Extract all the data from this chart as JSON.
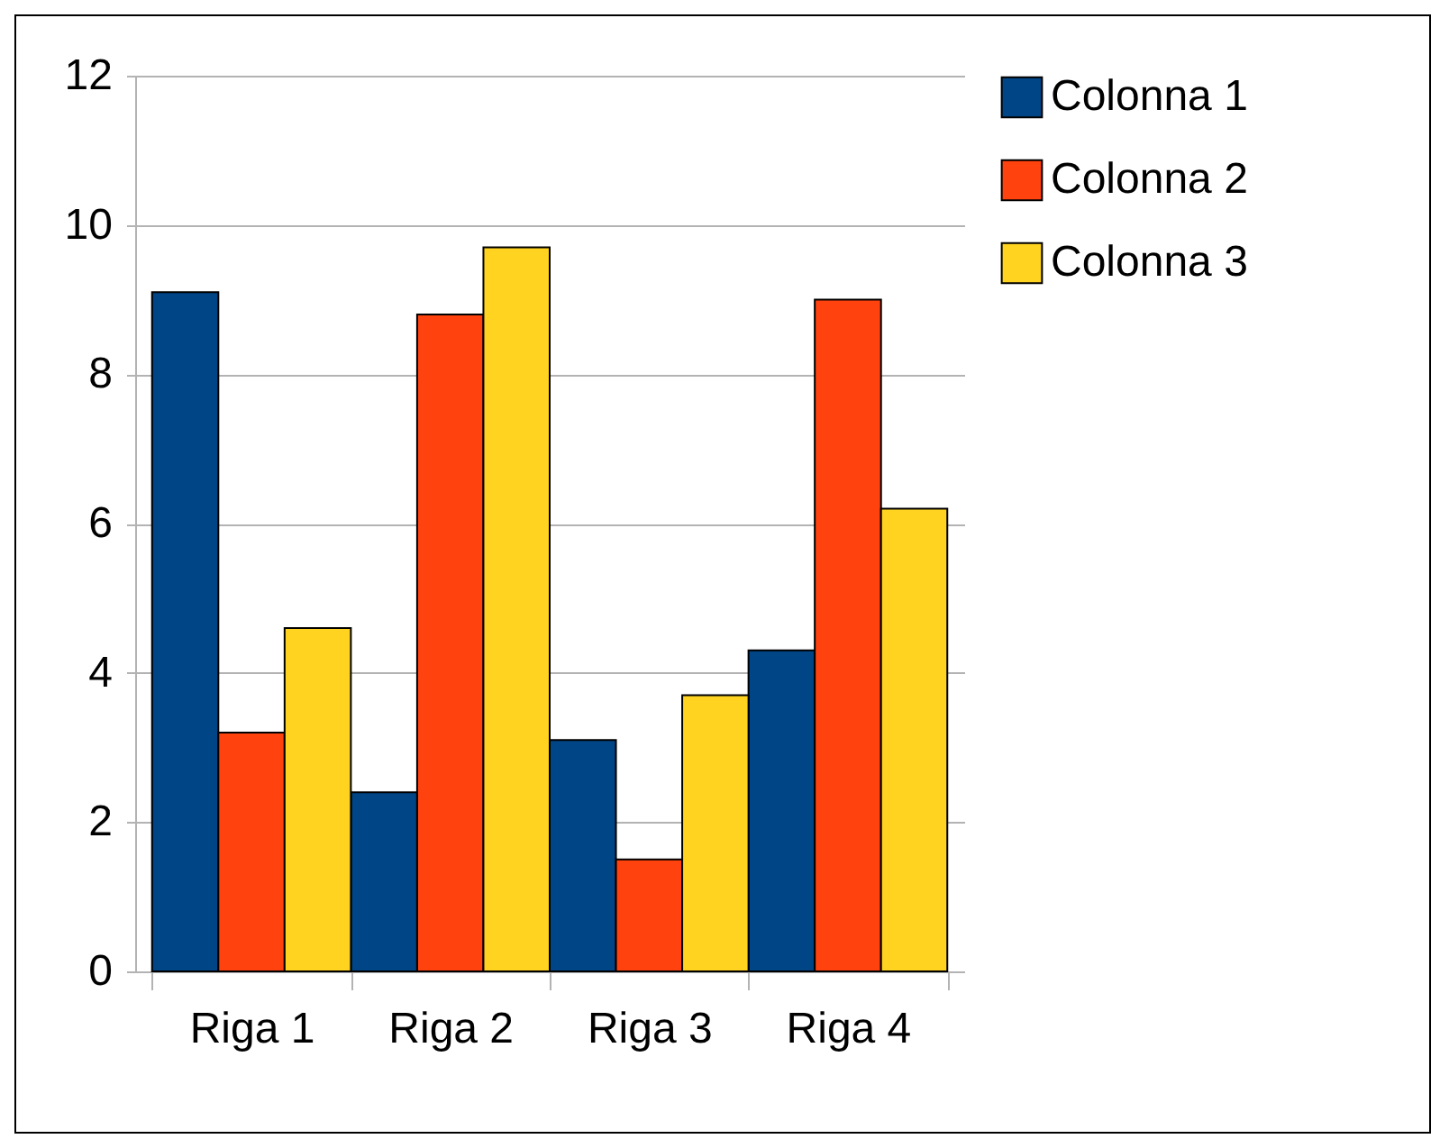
{
  "chart_data": {
    "type": "bar",
    "categories": [
      "Riga 1",
      "Riga 2",
      "Riga 3",
      "Riga 4"
    ],
    "series": [
      {
        "name": "Colonna 1",
        "color": "#004586",
        "values": [
          9.1,
          2.4,
          3.1,
          4.3
        ]
      },
      {
        "name": "Colonna 2",
        "color": "#ff420e",
        "values": [
          3.2,
          8.8,
          1.5,
          9.0
        ]
      },
      {
        "name": "Colonna 3",
        "color": "#ffd320",
        "values": [
          4.6,
          9.7,
          3.7,
          6.2
        ]
      }
    ],
    "ylim": [
      0,
      12
    ],
    "yticks": [
      0,
      2,
      4,
      6,
      8,
      10,
      12
    ],
    "grid": "y",
    "legend": "right"
  }
}
